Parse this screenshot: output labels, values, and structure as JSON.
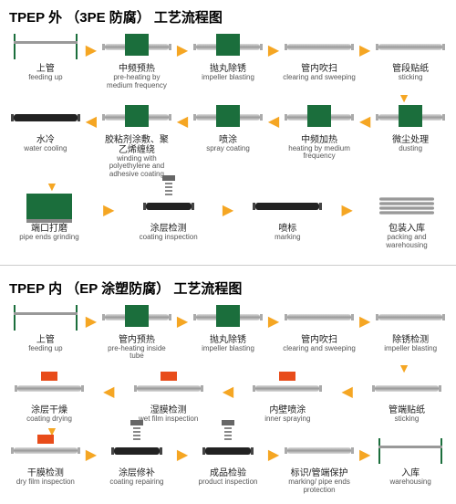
{
  "colors": {
    "green": "#1b6e3c",
    "arrow": "#f5a623",
    "red": "#e84c1a",
    "text": "#222222",
    "subtext": "#555555"
  },
  "d1": {
    "title": "TPEP 外 （3PE 防腐） 工艺流程图",
    "rows": [
      {
        "dir": "right",
        "steps": [
          {
            "cn": "上管",
            "en": "feeding up",
            "v": "rack"
          },
          {
            "cn": "中频预热",
            "en": "pre-heating by medium frequency",
            "v": "pipe-green"
          },
          {
            "cn": "抛丸除锈",
            "en": "impeller blasting",
            "v": "pipe-green"
          },
          {
            "cn": "管内吹扫",
            "en": "clearing and sweeping",
            "v": "pipe"
          },
          {
            "cn": "管段贴纸",
            "en": "sticking",
            "v": "pipe"
          }
        ]
      },
      {
        "dir": "left",
        "steps": [
          {
            "cn": "水冷",
            "en": "water cooling",
            "v": "pipe-black"
          },
          {
            "cn": "胶粘剂涂敷、聚乙烯缠绕",
            "en": "winding with polyethylene and adhesive coating",
            "v": "pipe-green"
          },
          {
            "cn": "喷涂",
            "en": "spray coating",
            "v": "pipe-green"
          },
          {
            "cn": "中频加热",
            "en": "heating by medium frequency",
            "v": "pipe-green"
          },
          {
            "cn": "微尘处理",
            "en": "dusting",
            "v": "pipe-green"
          }
        ]
      },
      {
        "dir": "right",
        "steps": [
          {
            "cn": "端口打磨",
            "en": "pipe ends grinding",
            "v": "machine"
          },
          {
            "cn": "涂层检测",
            "en": "coating inspection",
            "v": "spring"
          },
          {
            "cn": "喷标",
            "en": "marking",
            "v": "pipe-black"
          },
          {
            "cn": "包装入库",
            "en": "packing and warehousing",
            "v": "stack"
          }
        ]
      }
    ]
  },
  "d2": {
    "title": "TPEP 内 （EP 涂塑防腐） 工艺流程图",
    "rows": [
      {
        "dir": "right",
        "steps": [
          {
            "cn": "上管",
            "en": "feeding up",
            "v": "rack"
          },
          {
            "cn": "管内预热",
            "en": "pre-heating inside tube",
            "v": "pipe-green"
          },
          {
            "cn": "抛丸除锈",
            "en": "impeller blasting",
            "v": "pipe-green"
          },
          {
            "cn": "管内吹扫",
            "en": "clearing and sweeping",
            "v": "pipe"
          },
          {
            "cn": "除锈检测",
            "en": "impeller blasting",
            "v": "pipe"
          }
        ]
      },
      {
        "dir": "left",
        "steps": [
          {
            "cn": "涂层干燥",
            "en": "coating drying",
            "v": "pipe-red"
          },
          {
            "cn": "湿膜检测",
            "en": "wet film inspection",
            "v": "pipe-red"
          },
          {
            "cn": "内壁喷涂",
            "en": "inner spraying",
            "v": "pipe-red"
          },
          {
            "cn": "管端贴纸",
            "en": "sticking",
            "v": "pipe"
          }
        ]
      },
      {
        "dir": "right",
        "steps": [
          {
            "cn": "干膜检测",
            "en": "dry film inspection",
            "v": "pipe-red"
          },
          {
            "cn": "涂层修补",
            "en": "coating repairing",
            "v": "spring"
          },
          {
            "cn": "成品检验",
            "en": "product inspection",
            "v": "spring"
          },
          {
            "cn": "标识/管端保护",
            "en": "marking/ pipe ends protection",
            "v": "pipe"
          },
          {
            "cn": "入库",
            "en": "warehousing",
            "v": "rack"
          }
        ]
      }
    ]
  }
}
